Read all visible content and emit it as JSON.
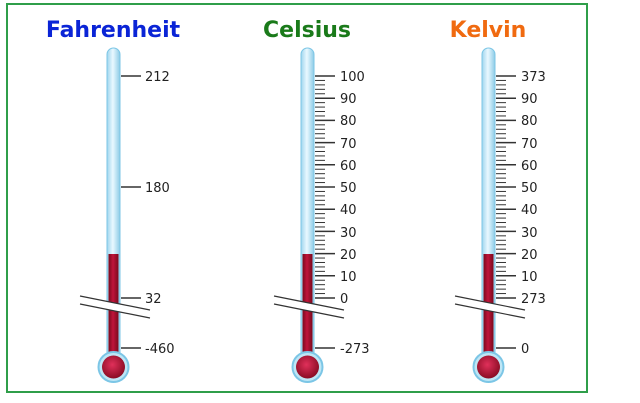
{
  "thermometers": [
    {
      "title": "Fahrenheit",
      "title_color": "#0a24d6",
      "labels": [
        "212",
        "180",
        "32",
        "-460"
      ]
    },
    {
      "title": "Celsius",
      "title_color": "#1a7a1a",
      "labels": [
        "100",
        "90",
        "80",
        "70",
        "60",
        "50",
        "40",
        "30",
        "20",
        "10",
        "0",
        "-273"
      ]
    },
    {
      "title": "Kelvin",
      "title_color": "#f06a10",
      "labels": [
        "373",
        "90",
        "80",
        "70",
        "60",
        "50",
        "40",
        "30",
        "20",
        "10",
        "273",
        "0"
      ]
    }
  ],
  "colors": {
    "frame": "#2f9e4a",
    "tube_glass": "#bfe6f5",
    "tube_edge": "#7cc6e6",
    "mercury": "#a0102a",
    "bulb": "#c0143a"
  }
}
